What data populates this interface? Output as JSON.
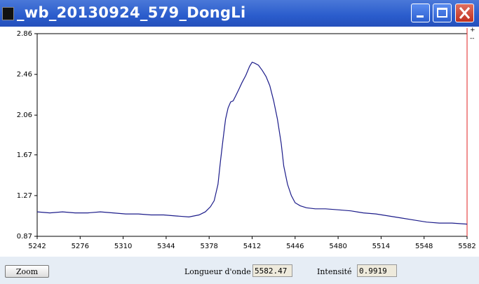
{
  "window": {
    "title": "_wb_20130924_579_DongLi"
  },
  "chart_data": {
    "type": "line",
    "x": [
      5242,
      5252,
      5262,
      5272,
      5282,
      5292,
      5302,
      5312,
      5322,
      5332,
      5342,
      5352,
      5362,
      5370,
      5375,
      5379,
      5382,
      5385,
      5387,
      5389,
      5391,
      5393,
      5395,
      5397,
      5399,
      5401,
      5404,
      5407,
      5410,
      5412,
      5414,
      5417,
      5420,
      5423,
      5426,
      5429,
      5432,
      5435,
      5437,
      5440,
      5443,
      5446,
      5450,
      5455,
      5462,
      5470,
      5480,
      5490,
      5500,
      5510,
      5520,
      5530,
      5540,
      5550,
      5560,
      5570,
      5582
    ],
    "series": [
      {
        "color": "#1c1c8a",
        "values": [
          1.11,
          1.1,
          1.11,
          1.1,
          1.1,
          1.11,
          1.1,
          1.09,
          1.09,
          1.08,
          1.08,
          1.07,
          1.06,
          1.08,
          1.11,
          1.16,
          1.22,
          1.38,
          1.61,
          1.82,
          2.02,
          2.13,
          2.19,
          2.2,
          2.25,
          2.3,
          2.38,
          2.45,
          2.54,
          2.58,
          2.57,
          2.55,
          2.5,
          2.44,
          2.35,
          2.2,
          2.02,
          1.78,
          1.56,
          1.38,
          1.27,
          1.2,
          1.17,
          1.15,
          1.14,
          1.14,
          1.13,
          1.12,
          1.1,
          1.09,
          1.07,
          1.05,
          1.03,
          1.01,
          1.0,
          1.0,
          0.99
        ]
      }
    ],
    "xlim": [
      5242,
      5582
    ],
    "xticks": [
      5242,
      5276,
      5310,
      5344,
      5378,
      5412,
      5446,
      5480,
      5514,
      5548,
      5582
    ],
    "ylim": [
      0.87,
      2.86
    ],
    "yticks": [
      0.87,
      1.27,
      1.67,
      2.06,
      2.46,
      2.86
    ],
    "grid": false
  },
  "controls": {
    "zoom": "Zoom",
    "wavelength_label": "Longueur d'onde",
    "wavelength": "5582.47",
    "intensity_label": "Intensité",
    "intensity": "0.9919"
  }
}
